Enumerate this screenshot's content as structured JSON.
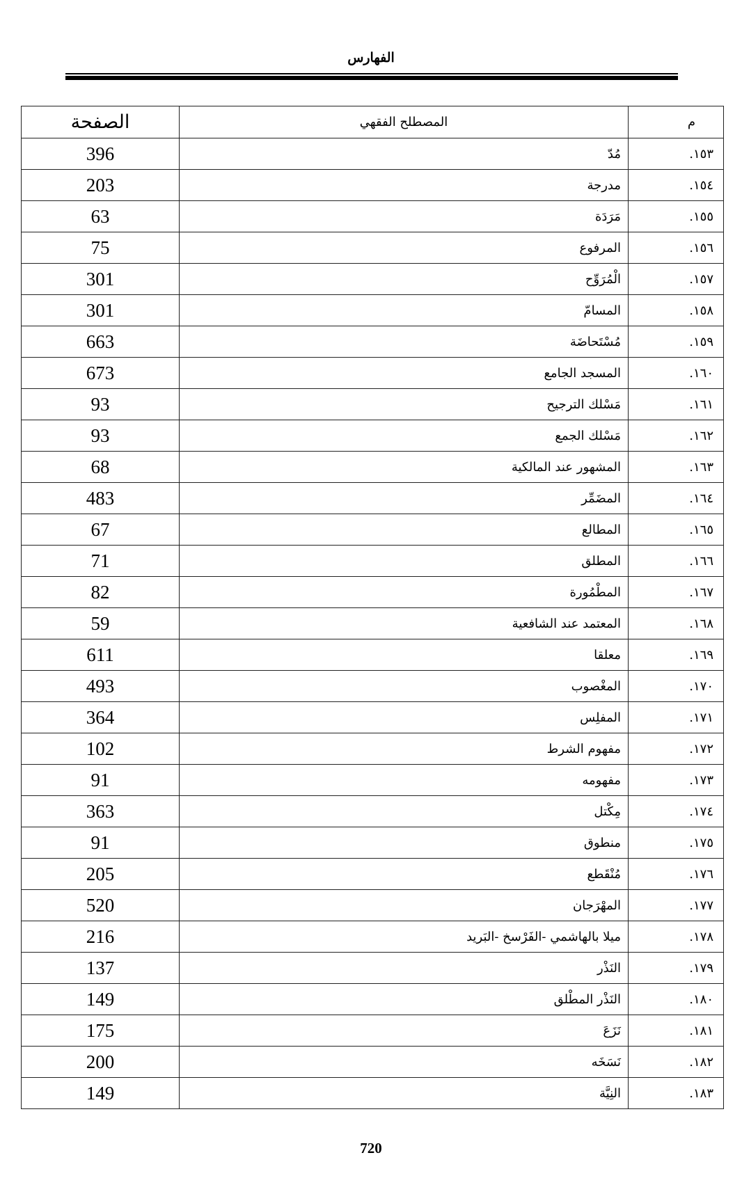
{
  "running_head": "الفهارس",
  "table": {
    "headers": {
      "page": "الصفحة",
      "term": "المصطلح الفقهي",
      "num": "م"
    },
    "rows": [
      {
        "num": "١٥٣.",
        "term": "مُدّ",
        "page": "396"
      },
      {
        "num": "١٥٤.",
        "term": "مدرجة",
        "page": "203"
      },
      {
        "num": "١٥٥.",
        "term": "مَرَدَة",
        "page": "63"
      },
      {
        "num": "١٥٦.",
        "term": "المرفوع",
        "page": "75"
      },
      {
        "num": "١٥٧.",
        "term": "الْمُرَوِّح",
        "page": "301"
      },
      {
        "num": "١٥٨.",
        "term": "المسامّ",
        "page": "301"
      },
      {
        "num": "١٥٩.",
        "term": "مُسْتَحاضَة",
        "page": "663"
      },
      {
        "num": "١٦٠.",
        "term": "المسجد الجامع",
        "page": "673"
      },
      {
        "num": "١٦١.",
        "term": "مَسْلك الترجيح",
        "page": "93"
      },
      {
        "num": "١٦٢.",
        "term": "مَسْلك الجمع",
        "page": "93"
      },
      {
        "num": "١٦٣.",
        "term": "المشهور عند المالكية",
        "page": "68"
      },
      {
        "num": "١٦٤.",
        "term": "المضَمِّر",
        "page": "483"
      },
      {
        "num": "١٦٥.",
        "term": "المطالع",
        "page": "67"
      },
      {
        "num": "١٦٦.",
        "term": "المطلق",
        "page": "71"
      },
      {
        "num": "١٦٧.",
        "term": "المطْمُورة",
        "page": "82"
      },
      {
        "num": "١٦٨.",
        "term": "المعتمد عند الشافعية",
        "page": "59"
      },
      {
        "num": "١٦٩.",
        "term": "معلقا",
        "page": "611"
      },
      {
        "num": "١٧٠.",
        "term": "المغْصوب",
        "page": "493"
      },
      {
        "num": "١٧١.",
        "term": "المفلِس",
        "page": "364"
      },
      {
        "num": "١٧٢.",
        "term": "مفهوم الشرط",
        "page": "102"
      },
      {
        "num": "١٧٣.",
        "term": "مفهومه",
        "page": "91"
      },
      {
        "num": "١٧٤.",
        "term": "مِكْتل",
        "page": "363"
      },
      {
        "num": "١٧٥.",
        "term": "منطوق",
        "page": "91"
      },
      {
        "num": "١٧٦.",
        "term": "مُنْقَطع",
        "page": "205"
      },
      {
        "num": "١٧٧.",
        "term": "المهْرَجان",
        "page": "520"
      },
      {
        "num": "١٧٨.",
        "term": "ميلا بالهاشمي -الفَرْسخ -البَريد",
        "page": "216"
      },
      {
        "num": "١٧٩.",
        "term": "النَذْر",
        "page": "137"
      },
      {
        "num": "١٨٠.",
        "term": "النَذْر المطْلق",
        "page": "149"
      },
      {
        "num": "١٨١.",
        "term": "نَزَعَ",
        "page": "175"
      },
      {
        "num": "١٨٢.",
        "term": "نَسَخَه",
        "page": "200"
      },
      {
        "num": "١٨٣.",
        "term": "النِيَّة",
        "page": "149"
      }
    ]
  },
  "page_number": "720"
}
